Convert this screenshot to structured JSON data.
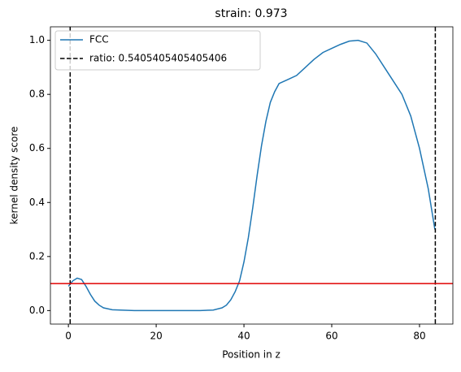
{
  "chart_data": {
    "type": "line",
    "title": "strain: 0.973",
    "x_label": "Position in z",
    "y_label": "kernel density score",
    "xlim": [
      -4.1,
      87.6
    ],
    "ylim": [
      -0.05,
      1.05
    ],
    "xticks": [
      0,
      20,
      40,
      60,
      80
    ],
    "yticks": [
      {
        "value": 0,
        "label": "0.0"
      },
      {
        "value": 0.2,
        "label": "0.2"
      },
      {
        "value": 0.4,
        "label": "0.4"
      },
      {
        "value": 0.6,
        "label": "0.6"
      },
      {
        "value": 0.8,
        "label": "0.8"
      },
      {
        "value": 1,
        "label": "1.0"
      }
    ],
    "series": [
      {
        "name": "FCC",
        "color": "#1f77b4",
        "x": [
          0,
          1,
          2,
          3,
          4,
          5,
          6,
          7,
          8,
          10,
          15,
          20,
          25,
          30,
          33,
          35,
          36,
          37,
          38,
          39,
          40,
          41,
          42,
          43,
          44,
          45,
          46,
          47,
          48,
          50,
          52,
          54,
          56,
          58,
          60,
          62,
          64,
          66,
          68,
          70,
          72,
          74,
          76,
          78,
          80,
          82,
          83.5
        ],
        "values": [
          0.09,
          0.11,
          0.12,
          0.115,
          0.09,
          0.06,
          0.035,
          0.02,
          0.01,
          0.003,
          0,
          0,
          0,
          0,
          0.002,
          0.01,
          0.02,
          0.04,
          0.07,
          0.11,
          0.18,
          0.27,
          0.38,
          0.5,
          0.61,
          0.7,
          0.77,
          0.81,
          0.84,
          0.855,
          0.87,
          0.9,
          0.93,
          0.955,
          0.97,
          0.985,
          0.997,
          1.0,
          0.99,
          0.95,
          0.9,
          0.85,
          0.8,
          0.72,
          0.6,
          0.45,
          0.3
        ]
      }
    ],
    "vlines": {
      "name": "ratio: 0.5405405405405406",
      "color": "#000000",
      "x": [
        0.4,
        83.6
      ]
    },
    "hline": {
      "color": "#e00000",
      "y": 0.1
    },
    "legend": "upper left"
  }
}
